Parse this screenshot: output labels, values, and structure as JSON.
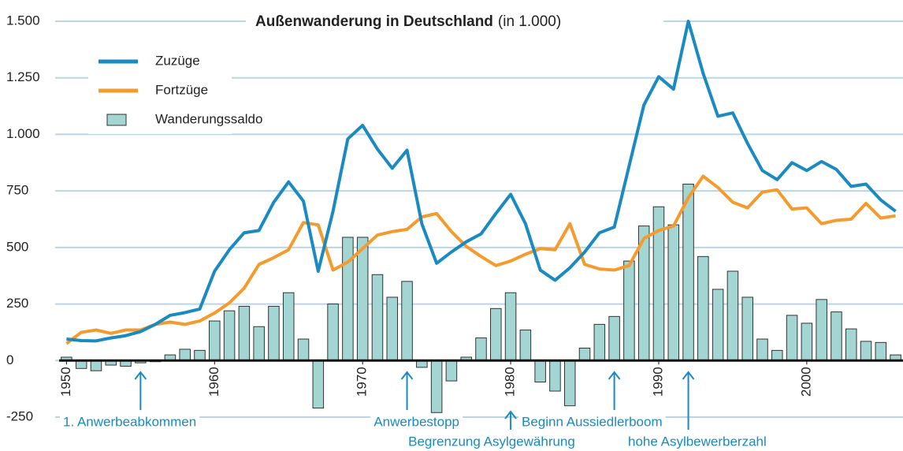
{
  "chart_data": {
    "type": "combo",
    "title": "Außenwanderung in Deutschland",
    "subtitle": "(in 1.000)",
    "x": [
      1950,
      1951,
      1952,
      1953,
      1954,
      1955,
      1956,
      1957,
      1958,
      1959,
      1960,
      1961,
      1962,
      1963,
      1964,
      1965,
      1966,
      1967,
      1968,
      1969,
      1970,
      1971,
      1972,
      1973,
      1974,
      1975,
      1976,
      1977,
      1978,
      1979,
      1980,
      1981,
      1982,
      1983,
      1984,
      1985,
      1986,
      1987,
      1988,
      1989,
      1990,
      1991,
      1992,
      1993,
      1994,
      1995,
      1996,
      1997,
      1998,
      1999,
      2000,
      2001,
      2002,
      2003,
      2004,
      2005,
      2006
    ],
    "series": [
      {
        "name": "Wanderungssaldo",
        "type": "bar",
        "color": "#a3d6d2",
        "values": [
          15,
          -35,
          -45,
          -20,
          -25,
          -10,
          -5,
          25,
          50,
          45,
          175,
          220,
          240,
          150,
          240,
          300,
          95,
          -210,
          250,
          545,
          545,
          380,
          280,
          350,
          -30,
          -230,
          -90,
          15,
          100,
          230,
          300,
          135,
          -95,
          -135,
          -200,
          55,
          160,
          195,
          440,
          595,
          680,
          600,
          780,
          460,
          315,
          395,
          280,
          95,
          45,
          200,
          165,
          270,
          215,
          140,
          85,
          80,
          25
        ]
      },
      {
        "name": "Fortzüge",
        "type": "line",
        "color": "#f59a2c",
        "values": [
          75,
          125,
          135,
          120,
          135,
          135,
          160,
          170,
          160,
          175,
          210,
          255,
          320,
          425,
          455,
          490,
          610,
          600,
          400,
          435,
          495,
          555,
          570,
          580,
          635,
          650,
          570,
          505,
          460,
          420,
          440,
          470,
          495,
          490,
          605,
          425,
          405,
          400,
          420,
          540,
          575,
          595,
          720,
          815,
          765,
          700,
          675,
          745,
          755,
          670,
          675,
          605,
          620,
          625,
          695,
          630,
          640
        ]
      },
      {
        "name": "Zuzüge",
        "type": "line",
        "color": "#1a8ac0",
        "values": [
          95,
          88,
          87,
          100,
          110,
          128,
          160,
          200,
          212,
          228,
          395,
          490,
          565,
          575,
          700,
          790,
          705,
          395,
          660,
          980,
          1040,
          935,
          850,
          930,
          605,
          430,
          480,
          525,
          560,
          650,
          735,
          605,
          400,
          355,
          410,
          480,
          565,
          590,
          860,
          1130,
          1255,
          1200,
          1500,
          1270,
          1080,
          1095,
          960,
          840,
          800,
          875,
          840,
          880,
          845,
          770,
          780,
          710,
          660
        ]
      }
    ],
    "xlim": [
      1949.5,
      2006.5
    ],
    "xticks": [
      1950,
      1960,
      1970,
      1980,
      1990,
      2000
    ],
    "ylim": [
      -250,
      1500
    ],
    "yticks": [
      -250,
      0,
      250,
      500,
      750,
      {
        "value": 1000,
        "label": "1.000"
      },
      {
        "value": 1250,
        "label": "1.250"
      },
      {
        "value": 1500,
        "label": "1.500"
      }
    ],
    "grid": true,
    "annotations": [
      {
        "x": 1955,
        "text": "1. Anwerbeabkommen"
      },
      {
        "x": 1973,
        "text": "Anwerbestopp"
      },
      {
        "x": 1980,
        "text": "Begrenzung Asylgewährung"
      },
      {
        "x": 1987,
        "text": "Beginn Aussiedlerboom"
      },
      {
        "x": 1992,
        "text": "hohe Asylbewerberzahl"
      }
    ]
  }
}
